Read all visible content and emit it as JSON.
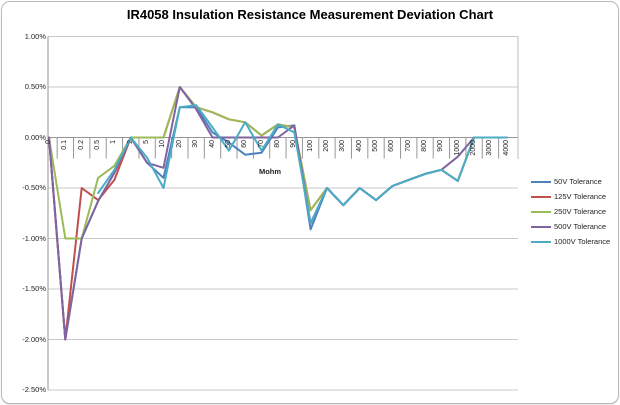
{
  "title": "IR4058 Insulation Resistance Measurement Deviation Chart",
  "chart_data": {
    "type": "line",
    "title": "IR4058 Insulation Resistance Measurement Deviation Chart",
    "xlabel": "Mohm",
    "ylabel": "",
    "grid": true,
    "legend_position": "right",
    "y_axis": {
      "min": -2.5,
      "max": 1.0,
      "step": 0.5,
      "unit": "%",
      "tick_labels": [
        "1.00%",
        "0.50%",
        "0.00%",
        "-0.50%",
        "-1.00%",
        "-1.50%",
        "-2.00%",
        "-2.50%"
      ]
    },
    "categories": [
      "0",
      "0.1",
      "0.2",
      "0.5",
      "1",
      "2",
      "5",
      "10",
      "20",
      "30",
      "40",
      "50",
      "60",
      "70",
      "80",
      "90",
      "100",
      "200",
      "300",
      "400",
      "500",
      "600",
      "700",
      "800",
      "900",
      "1000",
      "2000",
      "3000",
      "4000"
    ],
    "series": [
      {
        "name": "50V Tolerance",
        "color": "#4F81BD",
        "values": [
          0,
          -2.0,
          -1.0,
          -0.63,
          -0.35,
          0,
          -0.25,
          -0.4,
          0.3,
          0.3,
          0.05,
          -0.05,
          -0.17,
          -0.15,
          0.1,
          0.12,
          -0.91,
          -0.5,
          -0.67,
          -0.5,
          -0.62,
          -0.48,
          -0.42,
          -0.36,
          -0.32,
          -0.43,
          0,
          0,
          0
        ]
      },
      {
        "name": "125V Tolerance",
        "color": "#C0504D",
        "values": [
          0,
          -2.0,
          -0.5,
          -0.62,
          -0.42,
          0,
          0,
          0,
          0.5,
          0.3,
          0.25,
          0.18,
          0.15,
          0.02,
          0.13,
          0.1,
          -0.72,
          -0.5,
          -0.67,
          -0.5,
          -0.62,
          -0.48,
          -0.42,
          -0.36,
          -0.32,
          -0.43,
          0,
          0,
          0
        ]
      },
      {
        "name": "250V Tolerance",
        "color": "#9BBB59",
        "values": [
          0,
          -1.0,
          -1.0,
          -0.4,
          -0.28,
          0,
          0,
          0,
          0.5,
          0.3,
          0.25,
          0.18,
          0.15,
          0.02,
          0.13,
          0.1,
          -0.72,
          -0.5,
          -0.67,
          -0.5,
          -0.62,
          -0.48,
          -0.42,
          -0.36,
          -0.32,
          -0.43,
          0,
          0,
          0
        ]
      },
      {
        "name": "500V Tolerance",
        "color": "#8064A2",
        "values": [
          0,
          -2.0,
          -1.0,
          -0.63,
          -0.35,
          0,
          -0.25,
          -0.3,
          0.5,
          0.28,
          0,
          0,
          0,
          0,
          0,
          0.12,
          -0.85,
          -0.5,
          -0.67,
          -0.5,
          -0.62,
          -0.48,
          -0.42,
          -0.36,
          -0.32,
          -0.19,
          0,
          0,
          0
        ]
      },
      {
        "name": "1000V Tolerance",
        "color": "#4BACC6",
        "values": [
          null,
          null,
          null,
          -0.55,
          -0.32,
          0,
          -0.2,
          -0.5,
          0.3,
          0.32,
          0.1,
          -0.13,
          0.15,
          -0.13,
          0.13,
          0.05,
          -0.85,
          -0.5,
          -0.67,
          -0.5,
          -0.62,
          -0.48,
          -0.42,
          -0.36,
          -0.32,
          -0.43,
          0,
          0,
          0
        ]
      }
    ]
  }
}
